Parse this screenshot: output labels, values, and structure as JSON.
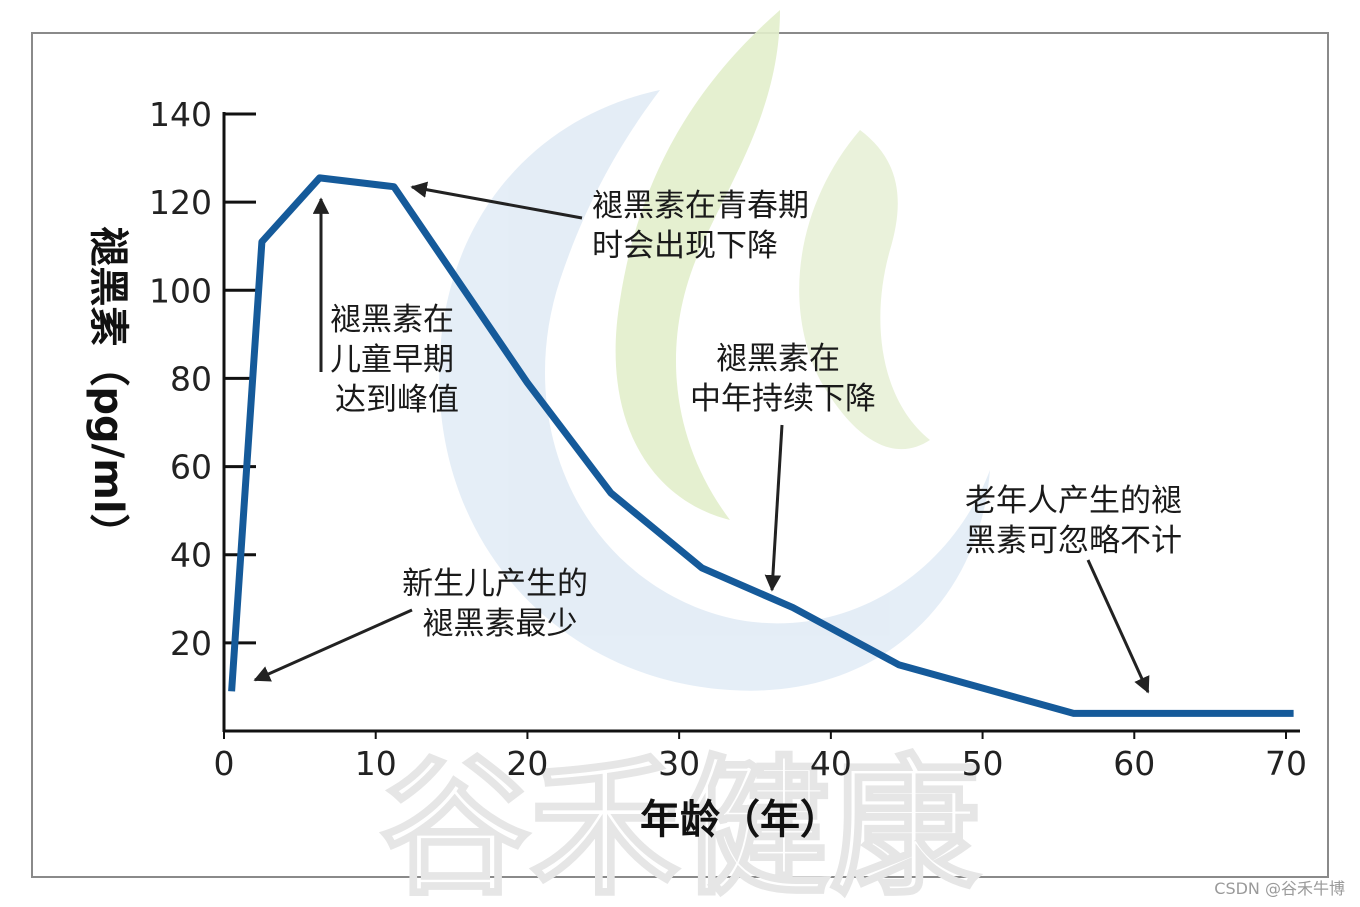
{
  "chart_data": {
    "type": "line",
    "xlabel": "年龄（年）",
    "ylabel": "褪黑素（pg/ml）",
    "xlim": [
      0,
      70
    ],
    "ylim": [
      0,
      140
    ],
    "x_ticks": [
      0,
      10,
      20,
      30,
      40,
      50,
      60,
      70
    ],
    "y_ticks": [
      20,
      40,
      60,
      80,
      100,
      120,
      140
    ],
    "grid": false,
    "series": [
      {
        "color": "#155a9a",
        "points": [
          [
            0.5,
            9
          ],
          [
            2.5,
            111
          ],
          [
            6.3,
            125.5
          ],
          [
            11.2,
            123.5
          ],
          [
            20,
            79
          ],
          [
            25.5,
            54
          ],
          [
            31.5,
            37
          ],
          [
            37.5,
            28
          ],
          [
            44.5,
            15
          ],
          [
            56,
            4
          ],
          [
            70.5,
            4
          ]
        ]
      }
    ],
    "annotations": [
      {
        "id": "newborn",
        "lines": [
          "新生儿产生的",
          "褪黑素最少"
        ]
      },
      {
        "id": "childhood-peak",
        "lines": [
          "褪黑素在",
          "儿童早期",
          "达到峰值"
        ]
      },
      {
        "id": "adolescence",
        "lines": [
          "褪黑素在青春期",
          "时会出现下降"
        ]
      },
      {
        "id": "middle-age",
        "lines": [
          "褪黑素在",
          "中年持续下降"
        ]
      },
      {
        "id": "elderly",
        "lines": [
          "老年人产生的褪",
          "黑素可忽略不计"
        ]
      }
    ]
  },
  "watermark": "谷禾健康",
  "credit": "CSDN @谷禾牛博",
  "colors": {
    "line": "#155a9a",
    "arrow": "#222222",
    "logo_green": "#d7e8b8",
    "logo_blue": "#d8e6f2"
  }
}
